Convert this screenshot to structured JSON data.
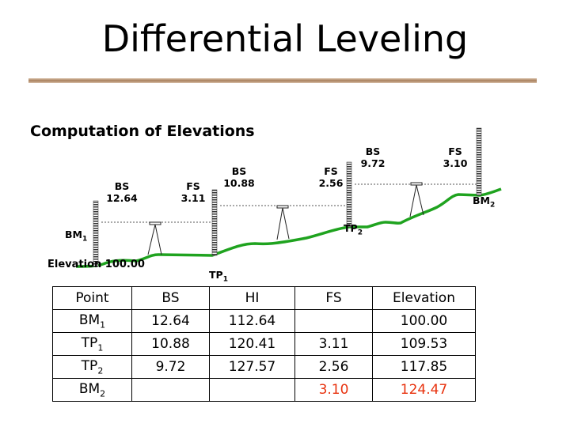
{
  "title": "Differential Leveling",
  "subtitle": "Computation of Elevations",
  "diagram": {
    "labels": {
      "bs1": "BS",
      "bs1v": "12.64",
      "fs1": "FS",
      "fs1v": "3.11",
      "bs2": "BS",
      "bs2v": "10.88",
      "fs2": "FS",
      "fs2v": "2.56",
      "bs3": "BS",
      "bs3v": "9.72",
      "fs3": "FS",
      "fs3v": "3.10"
    },
    "points": {
      "bm1": "BM",
      "bm1s": "1",
      "tp1": "TP",
      "tp1s": "1",
      "tp2": "TP",
      "tp2s": "2",
      "bm2": "BM",
      "bm2s": "2"
    },
    "elevation_label": "Elevation 100.00",
    "ground_color": "#1fa31f"
  },
  "table": {
    "headers": [
      "Point",
      "BS",
      "HI",
      "FS",
      "Elevation"
    ],
    "rows": [
      {
        "point": "BM",
        "sub": "1",
        "bs": "12.64",
        "hi": "112.64",
        "fs": "",
        "elev": "100.00"
      },
      {
        "point": "TP",
        "sub": "1",
        "bs": "10.88",
        "hi": "120.41",
        "fs": "3.11",
        "elev": "109.53"
      },
      {
        "point": "TP",
        "sub": "2",
        "bs": "9.72",
        "hi": "127.57",
        "fs": "2.56",
        "elev": "117.85"
      },
      {
        "point": "BM",
        "sub": "2",
        "bs": "",
        "hi": "",
        "fs": "3.10",
        "elev": "124.47"
      }
    ],
    "highlight_color": "#e8320e"
  }
}
